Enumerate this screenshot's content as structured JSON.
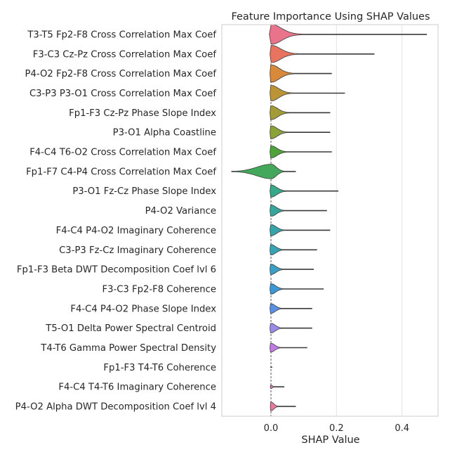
{
  "chart_data": {
    "type": "violin",
    "title": "Feature Importance Using SHAP Values",
    "xlabel": "SHAP Value",
    "ylabel": "",
    "xlim": [
      -0.15,
      0.51
    ],
    "xticks": [
      0.0,
      0.2,
      0.4
    ],
    "xtick_labels": [
      "0.0",
      "0.2",
      "0.4"
    ],
    "grid": "vertical",
    "palette": [
      "#e8738a",
      "#e8735f",
      "#d88a3a",
      "#bb9435",
      "#a39c36",
      "#8aa238",
      "#4ea43a",
      "#44a85c",
      "#38a88a",
      "#36a69c",
      "#36a4a8",
      "#38a3b4",
      "#3a9fc4",
      "#3c97d6",
      "#5a8fe6",
      "#9a8ae8",
      "#c27ae4",
      "#d973c8",
      "#e47ab8",
      "#e87a9c"
    ],
    "features": [
      {
        "label": "T3-T5  Fp2-F8 Cross Correlation Max Coef",
        "min": -0.005,
        "max": 0.475,
        "width": 0.115,
        "spread": 0.045
      },
      {
        "label": "F3-C3  Cz-Pz Cross Correlation Max Coef",
        "min": -0.003,
        "max": 0.315,
        "width": 0.1,
        "spread": 0.04
      },
      {
        "label": "P4-O2  Fp2-F8 Cross Correlation Max Coef",
        "min": -0.003,
        "max": 0.185,
        "width": 0.1,
        "spread": 0.035
      },
      {
        "label": "C3-P3  P3-O1 Cross Correlation Max Coef",
        "min": -0.003,
        "max": 0.225,
        "width": 0.09,
        "spread": 0.032
      },
      {
        "label": "Fp1-F3  Cz-Pz Phase Slope Index",
        "min": -0.003,
        "max": 0.18,
        "width": 0.08,
        "spread": 0.028
      },
      {
        "label": "P3-O1 Alpha Coastline",
        "min": -0.003,
        "max": 0.18,
        "width": 0.075,
        "spread": 0.026
      },
      {
        "label": "F4-C4  T6-O2 Cross Correlation Max Coef",
        "min": -0.003,
        "max": 0.185,
        "width": 0.07,
        "spread": 0.025
      },
      {
        "label": "Fp1-F7  C4-P4 Cross Correlation Max Coef",
        "min": -0.12,
        "max": 0.075,
        "width": 0.085,
        "spread": 0.022
      },
      {
        "label": "P3-O1  Fz-Cz Phase Slope Index",
        "min": -0.003,
        "max": 0.205,
        "width": 0.07,
        "spread": 0.024
      },
      {
        "label": "P4-O2 Variance",
        "min": -0.003,
        "max": 0.17,
        "width": 0.065,
        "spread": 0.022
      },
      {
        "label": "F4-C4  P4-O2 Imaginary Coherence",
        "min": -0.003,
        "max": 0.18,
        "width": 0.065,
        "spread": 0.022
      },
      {
        "label": "C3-P3  Fz-Cz Imaginary Coherence",
        "min": -0.003,
        "max": 0.14,
        "width": 0.06,
        "spread": 0.02
      },
      {
        "label": "Fp1-F3 Beta DWT Decomposition Coef lvl 6",
        "min": -0.003,
        "max": 0.13,
        "width": 0.06,
        "spread": 0.02
      },
      {
        "label": "F3-C3  Fp2-F8 Coherence",
        "min": -0.003,
        "max": 0.16,
        "width": 0.06,
        "spread": 0.02
      },
      {
        "label": "F4-C4  P4-O2 Phase Slope Index",
        "min": -0.003,
        "max": 0.125,
        "width": 0.055,
        "spread": 0.018
      },
      {
        "label": "T5-O1 Delta Power Spectral Centroid",
        "min": -0.003,
        "max": 0.125,
        "width": 0.055,
        "spread": 0.018
      },
      {
        "label": "T4-T6 Gamma Power Spectral Density",
        "min": -0.003,
        "max": 0.11,
        "width": 0.05,
        "spread": 0.016
      },
      {
        "label": "Fp1-F3  T4-T6 Coherence",
        "min": -0.001,
        "max": 0.003,
        "width": 0.001,
        "spread": 0.001
      },
      {
        "label": "F4-C4  T4-T6 Imaginary Coherence",
        "min": -0.002,
        "max": 0.04,
        "width": 0.02,
        "spread": 0.006
      },
      {
        "label": "P4-O2 Alpha DWT Decomposition Coef lvl 4",
        "min": -0.002,
        "max": 0.075,
        "width": 0.05,
        "spread": 0.012
      }
    ]
  }
}
